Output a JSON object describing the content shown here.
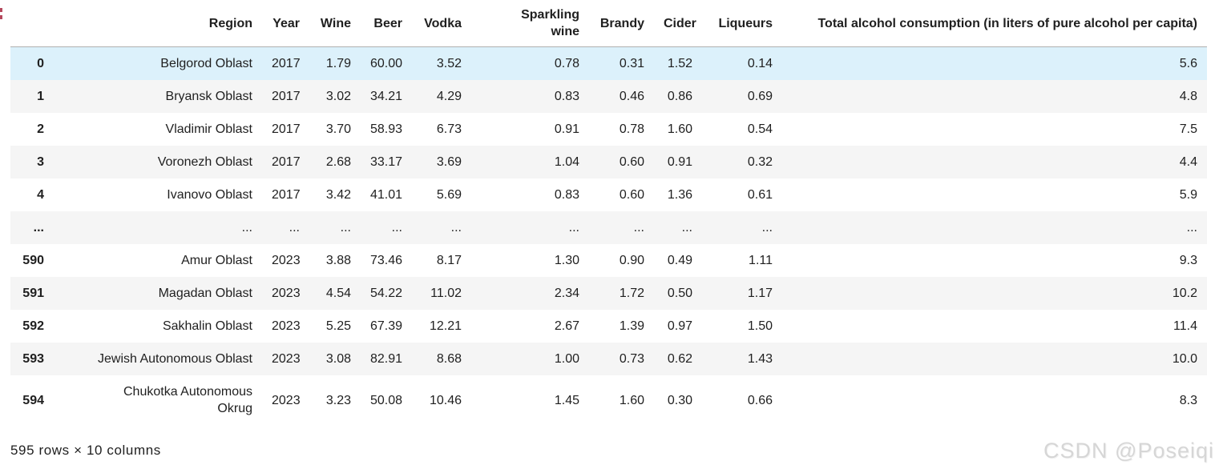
{
  "table": {
    "columns": [
      {
        "label": ""
      },
      {
        "label": "Region"
      },
      {
        "label": "Year"
      },
      {
        "label": "Wine"
      },
      {
        "label": "Beer"
      },
      {
        "label": "Vodka"
      },
      {
        "label": "Sparkling wine"
      },
      {
        "label": "Brandy"
      },
      {
        "label": "Cider"
      },
      {
        "label": "Liqueurs"
      },
      {
        "label": "Total alcohol consumption (in liters of pure alcohol per capita)"
      }
    ],
    "rows": [
      {
        "index": "0",
        "highlighted": true,
        "cells": [
          "Belgorod Oblast",
          "2017",
          "1.79",
          "60.00",
          "3.52",
          "0.78",
          "0.31",
          "1.52",
          "0.14",
          "5.6"
        ]
      },
      {
        "index": "1",
        "highlighted": false,
        "cells": [
          "Bryansk Oblast",
          "2017",
          "3.02",
          "34.21",
          "4.29",
          "0.83",
          "0.46",
          "0.86",
          "0.69",
          "4.8"
        ]
      },
      {
        "index": "2",
        "highlighted": false,
        "cells": [
          "Vladimir Oblast",
          "2017",
          "3.70",
          "58.93",
          "6.73",
          "0.91",
          "0.78",
          "1.60",
          "0.54",
          "7.5"
        ]
      },
      {
        "index": "3",
        "highlighted": false,
        "cells": [
          "Voronezh Oblast",
          "2017",
          "2.68",
          "33.17",
          "3.69",
          "1.04",
          "0.60",
          "0.91",
          "0.32",
          "4.4"
        ]
      },
      {
        "index": "4",
        "highlighted": false,
        "cells": [
          "Ivanovo Oblast",
          "2017",
          "3.42",
          "41.01",
          "5.69",
          "0.83",
          "0.60",
          "1.36",
          "0.61",
          "5.9"
        ]
      },
      {
        "index": "...",
        "highlighted": false,
        "cells": [
          "...",
          "...",
          "...",
          "...",
          "...",
          "...",
          "...",
          "...",
          "...",
          "..."
        ]
      },
      {
        "index": "590",
        "highlighted": false,
        "cells": [
          "Amur Oblast",
          "2023",
          "3.88",
          "73.46",
          "8.17",
          "1.30",
          "0.90",
          "0.49",
          "1.11",
          "9.3"
        ]
      },
      {
        "index": "591",
        "highlighted": false,
        "cells": [
          "Magadan Oblast",
          "2023",
          "4.54",
          "54.22",
          "11.02",
          "2.34",
          "1.72",
          "0.50",
          "1.17",
          "10.2"
        ]
      },
      {
        "index": "592",
        "highlighted": false,
        "cells": [
          "Sakhalin Oblast",
          "2023",
          "5.25",
          "67.39",
          "12.21",
          "2.67",
          "1.39",
          "0.97",
          "1.50",
          "11.4"
        ]
      },
      {
        "index": "593",
        "highlighted": false,
        "cells": [
          "Jewish Autonomous Oblast",
          "2023",
          "3.08",
          "82.91",
          "8.68",
          "1.00",
          "0.73",
          "0.62",
          "1.43",
          "10.0"
        ]
      },
      {
        "index": "594",
        "highlighted": false,
        "cells": [
          "Chukotka Autonomous Okrug",
          "2023",
          "3.23",
          "50.08",
          "10.46",
          "1.45",
          "1.60",
          "0.30",
          "0.66",
          "8.3"
        ]
      }
    ]
  },
  "footer": {
    "summary": "595 rows × 10 columns"
  },
  "watermark": {
    "text": "CSDN @Poseiqi"
  },
  "colors": {
    "highlight_row": "#dcf1fb",
    "stripe_row": "#f5f5f5",
    "header_border": "#b0b0b0",
    "text": "#1f1f1f",
    "watermark": "#d6d6d6",
    "prompt_mark": "#b5485d"
  }
}
